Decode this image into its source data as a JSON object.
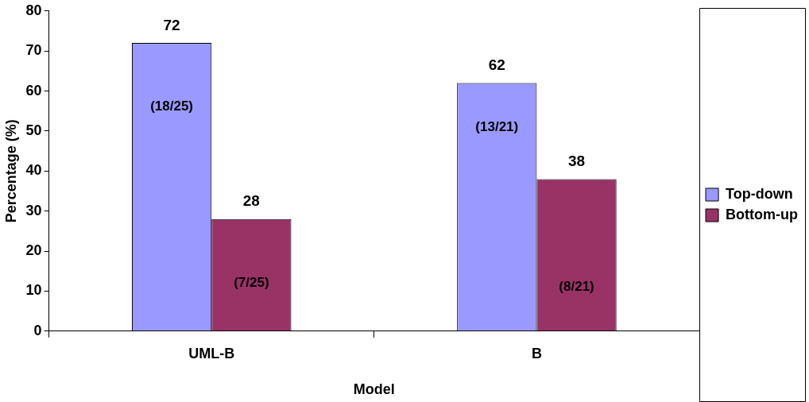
{
  "chart_data": {
    "type": "bar",
    "xlabel": "Model",
    "ylabel": "Percentage (%)",
    "categories": [
      "UML-B",
      "B"
    ],
    "series": [
      {
        "name": "Top-down",
        "color": "#9999ff",
        "values": [
          72,
          62
        ]
      },
      {
        "name": "Bottom-up",
        "color": "#993366",
        "values": [
          28,
          38
        ]
      }
    ],
    "annotations": [
      {
        "text": "(18/25)",
        "x": "UML-B",
        "y": 56
      },
      {
        "text": "(7/25)",
        "x": "UML-B",
        "y": 12
      },
      {
        "text": "(13/21)",
        "x": "B",
        "y": 51
      },
      {
        "text": "(8/21)",
        "x": "B",
        "y": 11
      }
    ],
    "ylim": [
      0,
      80
    ],
    "yticks": [
      0,
      10,
      20,
      30,
      40,
      50,
      60,
      70,
      80
    ],
    "grid": false,
    "legend": "right",
    "data_labels": true
  }
}
